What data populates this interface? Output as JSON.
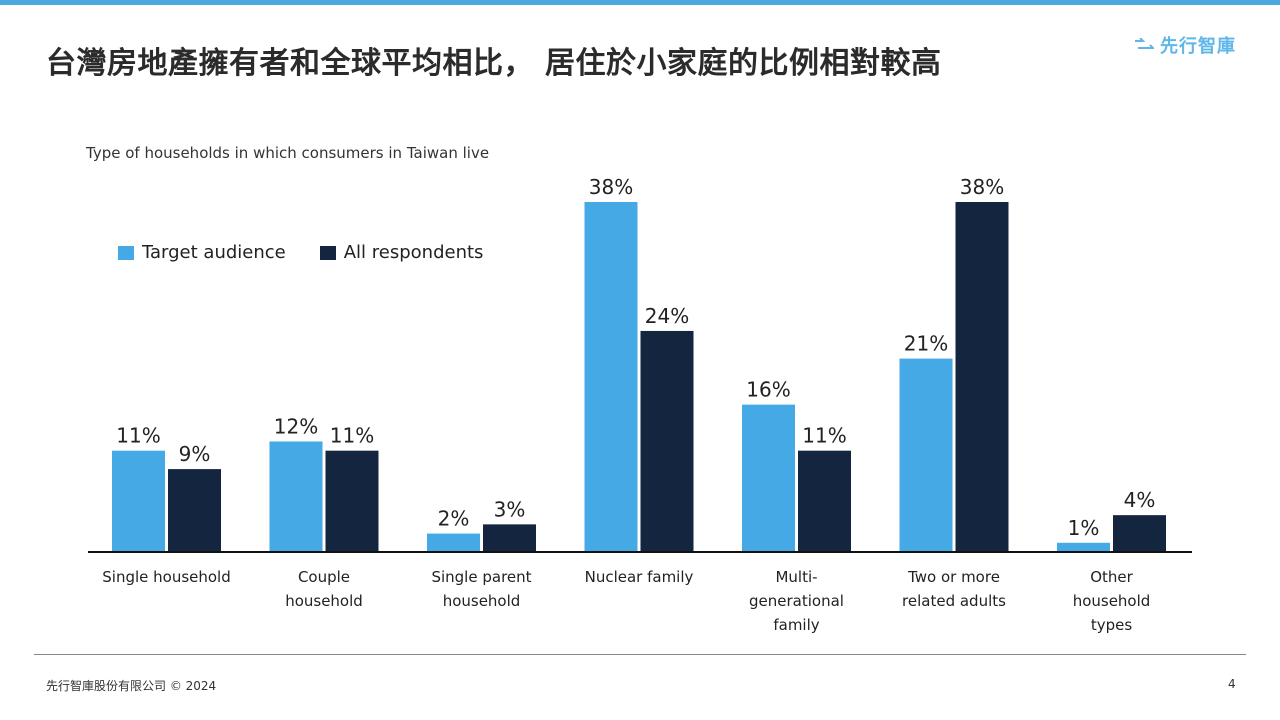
{
  "header": {
    "title": "台灣房地產擁有者和全球平均相比， 居住於小家庭的比例相對較高",
    "logo_text": "先行智庫"
  },
  "chart_data": {
    "type": "bar",
    "title": "Type of households in which consumers in Taiwan live",
    "categories": [
      [
        "Single household"
      ],
      [
        "Couple",
        "household"
      ],
      [
        "Single parent",
        "household"
      ],
      [
        "Nuclear family"
      ],
      [
        "Multi-",
        "generational",
        "family"
      ],
      [
        "Two or more",
        "related adults"
      ],
      [
        "Other",
        "household",
        "types"
      ]
    ],
    "series": [
      {
        "name": "Target audience",
        "color": "#45a9e6",
        "values": [
          11,
          12,
          2,
          38,
          16,
          21,
          1
        ]
      },
      {
        "name": "All respondents",
        "color": "#13253f",
        "values": [
          9,
          11,
          3,
          24,
          11,
          38,
          4
        ]
      }
    ],
    "value_suffix": "%",
    "ylim": [
      0,
      40
    ],
    "grid": false,
    "legend_position": "top-left"
  },
  "footer": {
    "company": "先行智庫股份有限公司 © 2024",
    "page_number": "4"
  }
}
